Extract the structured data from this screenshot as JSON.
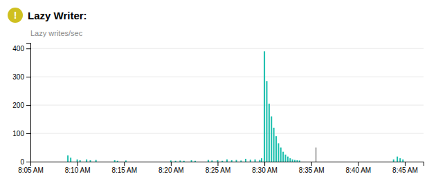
{
  "chart_data": {
    "type": "bar",
    "title": "Lazy Writer:",
    "ylabel": "Lazy writes/sec",
    "annotations": [
      {
        "text": "!",
        "color": "#cfc020"
      }
    ],
    "series": [
      {
        "color": "#1ABFAD",
        "x": [
          4,
          4.3,
          5,
          5.3,
          6,
          6.4,
          7,
          9,
          9.3,
          10.2,
          15,
          15.5,
          16,
          16.4,
          17.2,
          17.6,
          19,
          19.4,
          20,
          20.5,
          21,
          21.5,
          22,
          22.5,
          23,
          23.5,
          24,
          24.5,
          24.7,
          25,
          25.25,
          25.5,
          25.75,
          26,
          26.25,
          26.5,
          26.75,
          27,
          27.25,
          27.5,
          27.75,
          28,
          28.25,
          28.5,
          28.75,
          38.8,
          39.2,
          39.5,
          39.8
        ],
        "values": [
          22,
          14,
          8,
          5,
          8,
          5,
          6,
          5,
          3,
          4,
          4,
          3,
          4,
          3,
          5,
          3,
          6,
          4,
          5,
          3,
          8,
          5,
          6,
          4,
          10,
          7,
          8,
          6,
          12,
          390,
          285,
          205,
          160,
          120,
          90,
          65,
          50,
          35,
          25,
          18,
          12,
          8,
          6,
          5,
          4,
          8,
          18,
          12,
          8
        ]
      },
      {
        "color": "#aaaaaa",
        "x": [
          30.5
        ],
        "values": [
          50
        ]
      }
    ],
    "xlim": [
      0,
      42
    ],
    "xticks": [
      {
        "value": 0,
        "label": "8:05 AM"
      },
      {
        "value": 5,
        "label": "8:10 AM"
      },
      {
        "value": 10,
        "label": "8:15 AM"
      },
      {
        "value": 15,
        "label": "8:20 AM"
      },
      {
        "value": 20,
        "label": "8:25 AM"
      },
      {
        "value": 25,
        "label": "8:30 AM"
      },
      {
        "value": 30,
        "label": "8:35 AM"
      },
      {
        "value": 35,
        "label": "8:40 AM"
      },
      {
        "value": 40,
        "label": "8:45 AM"
      }
    ],
    "ylim": [
      0,
      420
    ],
    "yticks": [
      0,
      100,
      200,
      300,
      400
    ],
    "grid": true
  }
}
